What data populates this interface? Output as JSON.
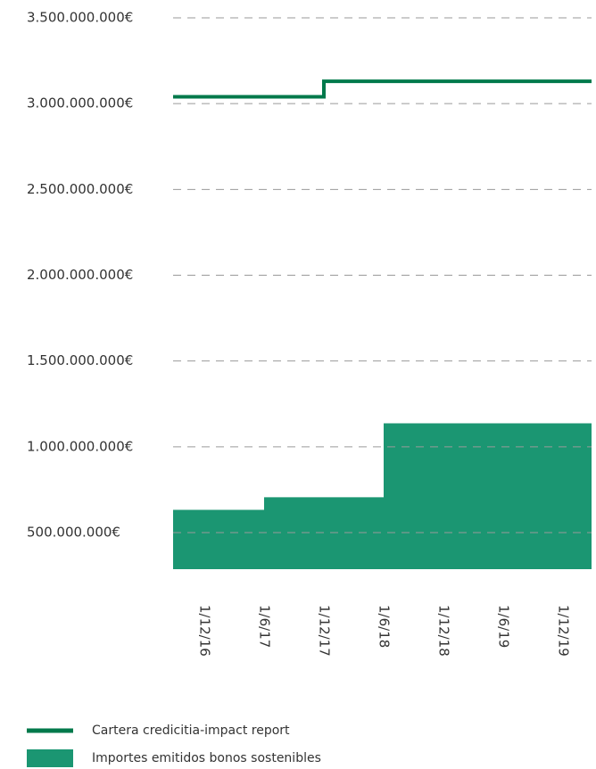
{
  "chart_data": {
    "type": "step",
    "categories": [
      "1/12/16",
      "1/6/17",
      "1/12/17",
      "1/6/18",
      "1/12/18",
      "1/6/19",
      "1/12/19"
    ],
    "series": [
      {
        "name": "Cartera credicitia-impact report",
        "color": "#00794b",
        "kind": "line",
        "values": [
          3040000000,
          3040000000,
          3130000000,
          3130000000,
          3130000000,
          3130000000,
          3130000000
        ]
      },
      {
        "name": "Importes emitidos bonos sostenibles",
        "color": "#1b9672",
        "kind": "area",
        "values": [
          633000000,
          706000000,
          706000000,
          1137000000,
          1137000000,
          1137000000,
          1137000000
        ]
      }
    ],
    "ylim": [
      287000000,
      3500000000
    ],
    "yticks": [
      {
        "value": 500000000,
        "label": "500.000.000€"
      },
      {
        "value": 1000000000,
        "label": "1.000.000.000€"
      },
      {
        "value": 1500000000,
        "label": "1.500.000.000€"
      },
      {
        "value": 2000000000,
        "label": "2.000.000.000€"
      },
      {
        "value": 2500000000,
        "label": "2.500.000.000€"
      },
      {
        "value": 3000000000,
        "label": "3.000.000.000€"
      },
      {
        "value": 3500000000,
        "label": "3.500.000.000€"
      }
    ],
    "grid": true
  }
}
